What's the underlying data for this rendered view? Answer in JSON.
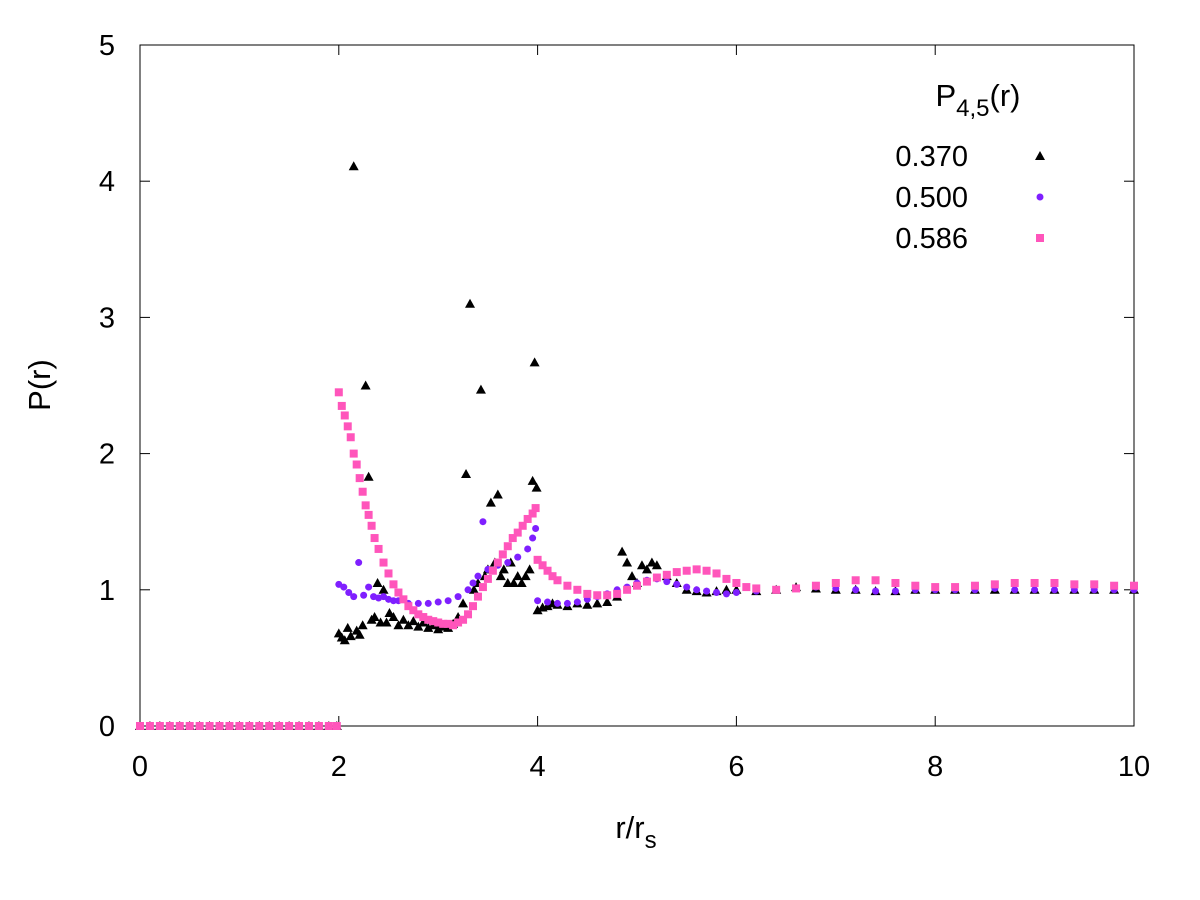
{
  "chart_data": {
    "type": "scatter",
    "title": "",
    "xlabel": "r/r",
    "xlabel_sub": "s",
    "ylabel": "P(r)",
    "xlim": [
      0,
      10
    ],
    "ylim": [
      0,
      5
    ],
    "x_ticks": [
      0,
      2,
      4,
      6,
      8,
      10
    ],
    "y_ticks": [
      0,
      1,
      2,
      3,
      4,
      5
    ],
    "grid": false,
    "legend": {
      "placement": "top-right",
      "title": "P",
      "title_sub": "4,5",
      "title_suffix": "(r)"
    },
    "series": [
      {
        "name": "0.370",
        "color": "#000000",
        "marker": "triangle",
        "points": [
          [
            0.0,
            0
          ],
          [
            0.1,
            0
          ],
          [
            0.2,
            0
          ],
          [
            0.3,
            0
          ],
          [
            0.4,
            0
          ],
          [
            0.5,
            0
          ],
          [
            0.6,
            0
          ],
          [
            0.7,
            0
          ],
          [
            0.8,
            0
          ],
          [
            0.9,
            0
          ],
          [
            1.0,
            0
          ],
          [
            1.1,
            0
          ],
          [
            1.2,
            0
          ],
          [
            1.3,
            0
          ],
          [
            1.4,
            0
          ],
          [
            1.5,
            0
          ],
          [
            1.6,
            0
          ],
          [
            1.7,
            0
          ],
          [
            1.8,
            0
          ],
          [
            1.9,
            0
          ],
          [
            1.98,
            0
          ],
          [
            2.0,
            0.68
          ],
          [
            2.03,
            0.65
          ],
          [
            2.06,
            0.63
          ],
          [
            2.09,
            0.72
          ],
          [
            2.12,
            0.66
          ],
          [
            2.15,
            4.11
          ],
          [
            2.18,
            0.7
          ],
          [
            2.21,
            0.67
          ],
          [
            2.24,
            0.74
          ],
          [
            2.27,
            2.5
          ],
          [
            2.3,
            1.83
          ],
          [
            2.33,
            0.78
          ],
          [
            2.36,
            0.8
          ],
          [
            2.39,
            1.05
          ],
          [
            2.42,
            0.76
          ],
          [
            2.45,
            1.0
          ],
          [
            2.48,
            0.76
          ],
          [
            2.51,
            0.83
          ],
          [
            2.55,
            0.8
          ],
          [
            2.6,
            0.74
          ],
          [
            2.65,
            0.78
          ],
          [
            2.7,
            0.74
          ],
          [
            2.75,
            0.77
          ],
          [
            2.8,
            0.73
          ],
          [
            2.85,
            0.76
          ],
          [
            2.9,
            0.72
          ],
          [
            2.95,
            0.74
          ],
          [
            3.0,
            0.71
          ],
          [
            3.05,
            0.73
          ],
          [
            3.1,
            0.72
          ],
          [
            3.15,
            0.75
          ],
          [
            3.2,
            0.8
          ],
          [
            3.25,
            0.9
          ],
          [
            3.28,
            1.85
          ],
          [
            3.32,
            3.1
          ],
          [
            3.36,
            1.0
          ],
          [
            3.4,
            1.05
          ],
          [
            3.43,
            2.47
          ],
          [
            3.47,
            1.1
          ],
          [
            3.5,
            1.15
          ],
          [
            3.53,
            1.64
          ],
          [
            3.57,
            1.2
          ],
          [
            3.6,
            1.7
          ],
          [
            3.63,
            1.1
          ],
          [
            3.66,
            1.15
          ],
          [
            3.7,
            1.05
          ],
          [
            3.73,
            1.2
          ],
          [
            3.76,
            1.05
          ],
          [
            3.8,
            1.1
          ],
          [
            3.84,
            1.05
          ],
          [
            3.88,
            1.1
          ],
          [
            3.92,
            1.15
          ],
          [
            3.95,
            1.8
          ],
          [
            3.97,
            2.67
          ],
          [
            3.99,
            1.75
          ],
          [
            4.0,
            0.85
          ],
          [
            4.05,
            0.87
          ],
          [
            4.1,
            0.88
          ],
          [
            4.15,
            0.9
          ],
          [
            4.2,
            0.89
          ],
          [
            4.3,
            0.88
          ],
          [
            4.4,
            0.9
          ],
          [
            4.5,
            0.89
          ],
          [
            4.6,
            0.9
          ],
          [
            4.7,
            0.91
          ],
          [
            4.8,
            0.95
          ],
          [
            4.85,
            1.28
          ],
          [
            4.9,
            1.2
          ],
          [
            4.95,
            1.1
          ],
          [
            5.0,
            1.05
          ],
          [
            5.05,
            1.18
          ],
          [
            5.1,
            1.15
          ],
          [
            5.15,
            1.2
          ],
          [
            5.2,
            1.18
          ],
          [
            5.3,
            1.1
          ],
          [
            5.4,
            1.05
          ],
          [
            5.5,
            1.0
          ],
          [
            5.6,
            0.99
          ],
          [
            5.7,
            0.98
          ],
          [
            5.8,
            0.99
          ],
          [
            5.9,
            1.0
          ],
          [
            6.0,
            1.0
          ],
          [
            6.2,
            0.99
          ],
          [
            6.4,
            1.0
          ],
          [
            6.6,
            1.02
          ],
          [
            6.8,
            1.01
          ],
          [
            7.0,
            1.0
          ],
          [
            7.2,
            1.0
          ],
          [
            7.4,
            0.99
          ],
          [
            7.6,
            0.99
          ],
          [
            7.8,
            1.0
          ],
          [
            8.0,
            1.0
          ],
          [
            8.2,
            1.0
          ],
          [
            8.4,
            1.0
          ],
          [
            8.6,
            1.0
          ],
          [
            8.8,
            1.0
          ],
          [
            9.0,
            1.0
          ],
          [
            9.2,
            1.0
          ],
          [
            9.4,
            1.0
          ],
          [
            9.6,
            1.0
          ],
          [
            9.8,
            1.0
          ],
          [
            10.0,
            1.0
          ]
        ]
      },
      {
        "name": "0.500",
        "color": "#7f1fff",
        "marker": "circle",
        "points": [
          [
            0.0,
            0
          ],
          [
            0.2,
            0
          ],
          [
            0.4,
            0
          ],
          [
            0.6,
            0
          ],
          [
            0.8,
            0
          ],
          [
            1.0,
            0
          ],
          [
            1.2,
            0
          ],
          [
            1.4,
            0
          ],
          [
            1.6,
            0
          ],
          [
            1.8,
            0
          ],
          [
            1.98,
            0
          ],
          [
            2.0,
            1.04
          ],
          [
            2.05,
            1.02
          ],
          [
            2.1,
            0.98
          ],
          [
            2.15,
            0.95
          ],
          [
            2.2,
            1.2
          ],
          [
            2.25,
            0.96
          ],
          [
            2.3,
            1.02
          ],
          [
            2.35,
            0.95
          ],
          [
            2.4,
            0.94
          ],
          [
            2.45,
            0.95
          ],
          [
            2.5,
            0.93
          ],
          [
            2.55,
            0.92
          ],
          [
            2.6,
            0.92
          ],
          [
            2.7,
            0.9
          ],
          [
            2.8,
            0.9
          ],
          [
            2.9,
            0.9
          ],
          [
            3.0,
            0.91
          ],
          [
            3.1,
            0.92
          ],
          [
            3.2,
            0.95
          ],
          [
            3.3,
            1.0
          ],
          [
            3.35,
            1.05
          ],
          [
            3.4,
            1.1
          ],
          [
            3.45,
            1.5
          ],
          [
            3.5,
            1.15
          ],
          [
            3.6,
            1.18
          ],
          [
            3.7,
            1.2
          ],
          [
            3.8,
            1.24
          ],
          [
            3.9,
            1.3
          ],
          [
            3.95,
            1.38
          ],
          [
            3.98,
            1.45
          ],
          [
            4.0,
            0.92
          ],
          [
            4.1,
            0.91
          ],
          [
            4.2,
            0.9
          ],
          [
            4.3,
            0.9
          ],
          [
            4.4,
            0.91
          ],
          [
            4.5,
            0.93
          ],
          [
            4.6,
            0.95
          ],
          [
            4.7,
            0.97
          ],
          [
            4.8,
            1.0
          ],
          [
            4.9,
            1.02
          ],
          [
            5.0,
            1.05
          ],
          [
            5.1,
            1.07
          ],
          [
            5.2,
            1.08
          ],
          [
            5.3,
            1.06
          ],
          [
            5.4,
            1.04
          ],
          [
            5.5,
            1.02
          ],
          [
            5.6,
            1.0
          ],
          [
            5.7,
            0.99
          ],
          [
            5.8,
            0.98
          ],
          [
            5.9,
            0.97
          ],
          [
            6.0,
            0.98
          ],
          [
            6.2,
            0.99
          ],
          [
            6.4,
            1.0
          ],
          [
            6.6,
            1.01
          ],
          [
            6.8,
            1.02
          ],
          [
            7.0,
            1.01
          ],
          [
            7.2,
            1.0
          ],
          [
            7.4,
            0.99
          ],
          [
            7.6,
            0.99
          ],
          [
            7.8,
            1.0
          ],
          [
            8.0,
            1.0
          ],
          [
            8.2,
            1.0
          ],
          [
            8.4,
            1.0
          ],
          [
            8.6,
            1.01
          ],
          [
            8.8,
            1.0
          ],
          [
            9.0,
            1.0
          ],
          [
            9.2,
            1.0
          ],
          [
            9.4,
            1.0
          ],
          [
            9.6,
            1.0
          ],
          [
            9.8,
            1.0
          ],
          [
            10.0,
            1.0
          ]
        ]
      },
      {
        "name": "0.586",
        "color": "#ff55bb",
        "marker": "square",
        "points": [
          [
            0.0,
            0
          ],
          [
            0.1,
            0
          ],
          [
            0.2,
            0
          ],
          [
            0.3,
            0
          ],
          [
            0.4,
            0
          ],
          [
            0.5,
            0
          ],
          [
            0.6,
            0
          ],
          [
            0.7,
            0
          ],
          [
            0.8,
            0
          ],
          [
            0.9,
            0
          ],
          [
            1.0,
            0
          ],
          [
            1.1,
            0
          ],
          [
            1.2,
            0
          ],
          [
            1.3,
            0
          ],
          [
            1.4,
            0
          ],
          [
            1.5,
            0
          ],
          [
            1.6,
            0
          ],
          [
            1.7,
            0
          ],
          [
            1.8,
            0
          ],
          [
            1.9,
            0
          ],
          [
            1.98,
            0
          ],
          [
            2.0,
            2.45
          ],
          [
            2.03,
            2.35
          ],
          [
            2.06,
            2.28
          ],
          [
            2.09,
            2.2
          ],
          [
            2.12,
            2.12
          ],
          [
            2.15,
            2.0
          ],
          [
            2.18,
            1.92
          ],
          [
            2.21,
            1.82
          ],
          [
            2.24,
            1.72
          ],
          [
            2.27,
            1.62
          ],
          [
            2.3,
            1.55
          ],
          [
            2.33,
            1.47
          ],
          [
            2.36,
            1.38
          ],
          [
            2.4,
            1.3
          ],
          [
            2.45,
            1.2
          ],
          [
            2.5,
            1.12
          ],
          [
            2.55,
            1.04
          ],
          [
            2.6,
            0.98
          ],
          [
            2.65,
            0.93
          ],
          [
            2.7,
            0.88
          ],
          [
            2.75,
            0.85
          ],
          [
            2.8,
            0.82
          ],
          [
            2.85,
            0.8
          ],
          [
            2.9,
            0.78
          ],
          [
            2.95,
            0.77
          ],
          [
            3.0,
            0.76
          ],
          [
            3.05,
            0.75
          ],
          [
            3.1,
            0.75
          ],
          [
            3.15,
            0.74
          ],
          [
            3.2,
            0.76
          ],
          [
            3.25,
            0.78
          ],
          [
            3.3,
            0.82
          ],
          [
            3.35,
            0.88
          ],
          [
            3.4,
            0.95
          ],
          [
            3.45,
            1.02
          ],
          [
            3.5,
            1.08
          ],
          [
            3.55,
            1.14
          ],
          [
            3.6,
            1.2
          ],
          [
            3.65,
            1.26
          ],
          [
            3.7,
            1.32
          ],
          [
            3.75,
            1.38
          ],
          [
            3.8,
            1.42
          ],
          [
            3.85,
            1.47
          ],
          [
            3.9,
            1.52
          ],
          [
            3.95,
            1.56
          ],
          [
            3.98,
            1.6
          ],
          [
            4.0,
            1.22
          ],
          [
            4.05,
            1.18
          ],
          [
            4.1,
            1.14
          ],
          [
            4.15,
            1.1
          ],
          [
            4.2,
            1.07
          ],
          [
            4.3,
            1.03
          ],
          [
            4.4,
            1.0
          ],
          [
            4.5,
            0.97
          ],
          [
            4.6,
            0.96
          ],
          [
            4.7,
            0.96
          ],
          [
            4.8,
            0.97
          ],
          [
            4.9,
            1.0
          ],
          [
            5.0,
            1.03
          ],
          [
            5.1,
            1.06
          ],
          [
            5.2,
            1.09
          ],
          [
            5.3,
            1.11
          ],
          [
            5.4,
            1.13
          ],
          [
            5.5,
            1.14
          ],
          [
            5.6,
            1.15
          ],
          [
            5.7,
            1.14
          ],
          [
            5.8,
            1.12
          ],
          [
            5.9,
            1.08
          ],
          [
            6.0,
            1.05
          ],
          [
            6.1,
            1.02
          ],
          [
            6.2,
            1.01
          ],
          [
            6.4,
            1.0
          ],
          [
            6.6,
            1.01
          ],
          [
            6.8,
            1.03
          ],
          [
            7.0,
            1.05
          ],
          [
            7.2,
            1.07
          ],
          [
            7.4,
            1.07
          ],
          [
            7.6,
            1.05
          ],
          [
            7.8,
            1.03
          ],
          [
            8.0,
            1.02
          ],
          [
            8.2,
            1.02
          ],
          [
            8.4,
            1.03
          ],
          [
            8.6,
            1.04
          ],
          [
            8.8,
            1.05
          ],
          [
            9.0,
            1.05
          ],
          [
            9.2,
            1.05
          ],
          [
            9.4,
            1.04
          ],
          [
            9.6,
            1.04
          ],
          [
            9.8,
            1.03
          ],
          [
            10.0,
            1.03
          ]
        ]
      }
    ]
  }
}
